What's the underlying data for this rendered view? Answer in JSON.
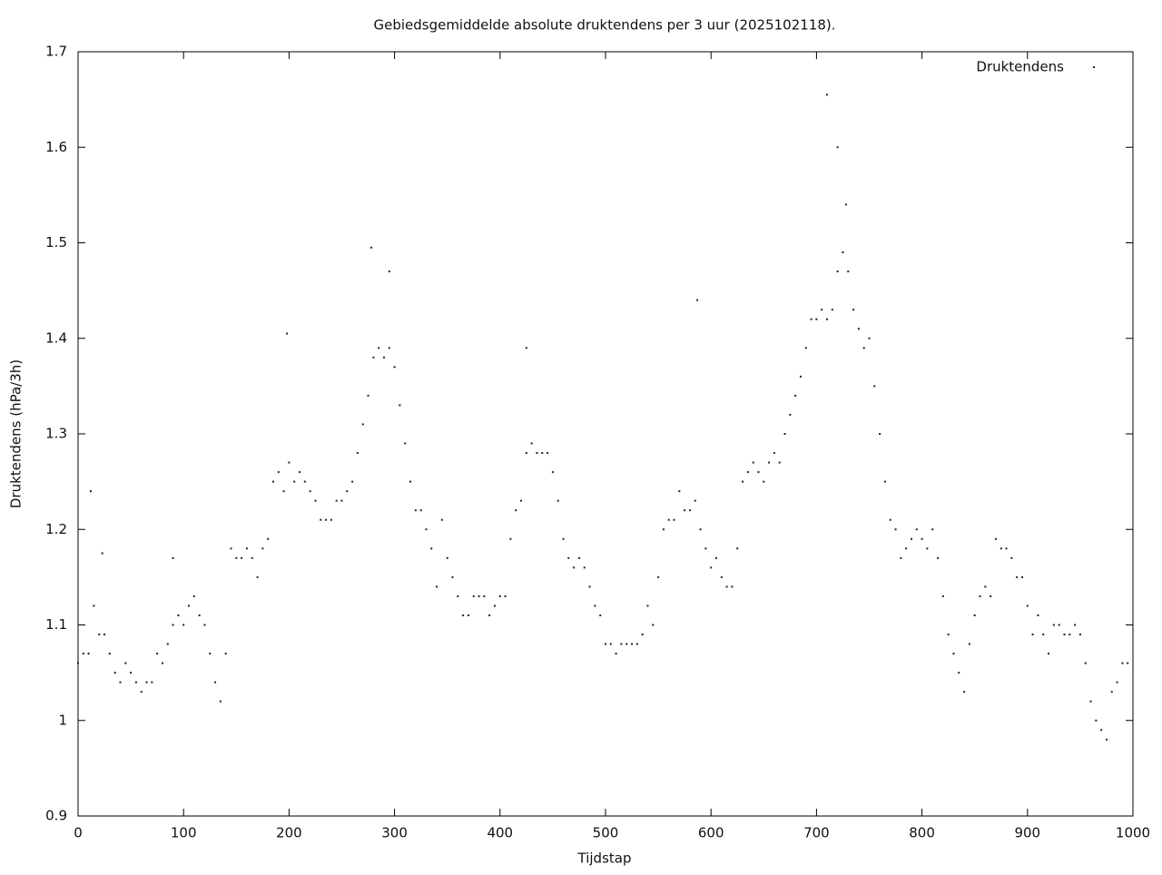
{
  "chart_data": {
    "type": "scatter",
    "title": "Gebiedsgemiddelde absolute druktendens per 3 uur (2025102118).",
    "x_label": "Tijdstap",
    "y_label": "Druktendens (hPa/3h)",
    "xlim": [
      0,
      1000
    ],
    "xticks": [
      0,
      100,
      200,
      300,
      400,
      500,
      600,
      700,
      800,
      900,
      1000
    ],
    "ylim": [
      0.9,
      1.7
    ],
    "yticks": [
      0.9,
      1,
      1.1,
      1.2,
      1.3,
      1.4,
      1.5,
      1.6,
      1.7
    ],
    "grid": false,
    "legend": "upper right",
    "series": [
      {
        "name": "Druktendens",
        "color": "#222222",
        "x": [
          0,
          5,
          10,
          15,
          20,
          25,
          30,
          35,
          40,
          45,
          50,
          55,
          60,
          65,
          70,
          75,
          80,
          85,
          90,
          95,
          100,
          105,
          110,
          115,
          120,
          125,
          130,
          135,
          140,
          145,
          150,
          155,
          160,
          165,
          170,
          175,
          180,
          185,
          190,
          195,
          200,
          205,
          210,
          215,
          220,
          225,
          230,
          235,
          240,
          245,
          250,
          255,
          260,
          265,
          270,
          275,
          280,
          285,
          290,
          295,
          300,
          305,
          310,
          315,
          320,
          325,
          330,
          335,
          340,
          345,
          350,
          355,
          360,
          365,
          370,
          375,
          380,
          385,
          390,
          395,
          400,
          405,
          410,
          415,
          420,
          425,
          430,
          435,
          440,
          445,
          450,
          455,
          460,
          465,
          470,
          475,
          480,
          485,
          490,
          495,
          500,
          505,
          510,
          515,
          520,
          525,
          530,
          535,
          540,
          545,
          550,
          555,
          560,
          565,
          570,
          575,
          580,
          585,
          590,
          595,
          600,
          605,
          610,
          615,
          620,
          625,
          630,
          635,
          640,
          645,
          650,
          655,
          660,
          665,
          670,
          675,
          680,
          685,
          690,
          695,
          700,
          705,
          710,
          715,
          720,
          725,
          730,
          735,
          740,
          745,
          750,
          755,
          760,
          765,
          770,
          775,
          780,
          785,
          790,
          795,
          800,
          805,
          810,
          815,
          820,
          825,
          830,
          835,
          840,
          845,
          850,
          855,
          860,
          865,
          870,
          875,
          880,
          885,
          890,
          895,
          900,
          905,
          910,
          915,
          920,
          925,
          930,
          935,
          940,
          945,
          950,
          955,
          960,
          965,
          970,
          975,
          980,
          985,
          990,
          995,
          12,
          23,
          90,
          198,
          278,
          295,
          425,
          587,
          710,
          720,
          728
        ],
        "values": [
          1.06,
          1.07,
          1.07,
          1.12,
          1.09,
          1.09,
          1.07,
          1.05,
          1.04,
          1.06,
          1.05,
          1.04,
          1.03,
          1.04,
          1.04,
          1.07,
          1.06,
          1.08,
          1.1,
          1.11,
          1.1,
          1.12,
          1.13,
          1.11,
          1.1,
          1.07,
          1.04,
          1.02,
          1.07,
          1.18,
          1.17,
          1.17,
          1.18,
          1.17,
          1.15,
          1.18,
          1.19,
          1.25,
          1.26,
          1.24,
          1.27,
          1.25,
          1.26,
          1.25,
          1.24,
          1.23,
          1.21,
          1.21,
          1.21,
          1.23,
          1.23,
          1.24,
          1.25,
          1.28,
          1.31,
          1.34,
          1.38,
          1.39,
          1.38,
          1.39,
          1.37,
          1.33,
          1.29,
          1.25,
          1.22,
          1.22,
          1.2,
          1.18,
          1.14,
          1.21,
          1.17,
          1.15,
          1.13,
          1.11,
          1.11,
          1.13,
          1.13,
          1.13,
          1.11,
          1.12,
          1.13,
          1.13,
          1.19,
          1.22,
          1.23,
          1.28,
          1.29,
          1.28,
          1.28,
          1.28,
          1.26,
          1.23,
          1.19,
          1.17,
          1.16,
          1.17,
          1.16,
          1.14,
          1.12,
          1.11,
          1.08,
          1.08,
          1.07,
          1.08,
          1.08,
          1.08,
          1.08,
          1.09,
          1.12,
          1.1,
          1.15,
          1.2,
          1.21,
          1.21,
          1.24,
          1.22,
          1.22,
          1.23,
          1.2,
          1.18,
          1.16,
          1.17,
          1.15,
          1.14,
          1.14,
          1.18,
          1.25,
          1.26,
          1.27,
          1.26,
          1.25,
          1.27,
          1.28,
          1.27,
          1.3,
          1.32,
          1.34,
          1.36,
          1.39,
          1.42,
          1.42,
          1.43,
          1.42,
          1.43,
          1.47,
          1.49,
          1.47,
          1.43,
          1.41,
          1.39,
          1.4,
          1.35,
          1.3,
          1.25,
          1.21,
          1.2,
          1.17,
          1.18,
          1.19,
          1.2,
          1.19,
          1.18,
          1.2,
          1.17,
          1.13,
          1.09,
          1.07,
          1.05,
          1.03,
          1.08,
          1.11,
          1.13,
          1.14,
          1.13,
          1.19,
          1.18,
          1.18,
          1.17,
          1.15,
          1.15,
          1.12,
          1.09,
          1.11,
          1.09,
          1.07,
          1.1,
          1.1,
          1.09,
          1.09,
          1.1,
          1.09,
          1.06,
          1.02,
          1,
          0.99,
          0.98,
          1.03,
          1.04,
          1.06,
          1.06,
          1.24,
          1.175,
          1.17,
          1.405,
          1.495,
          1.47,
          1.39,
          1.44,
          1.655,
          1.6,
          1.54
        ]
      }
    ]
  }
}
